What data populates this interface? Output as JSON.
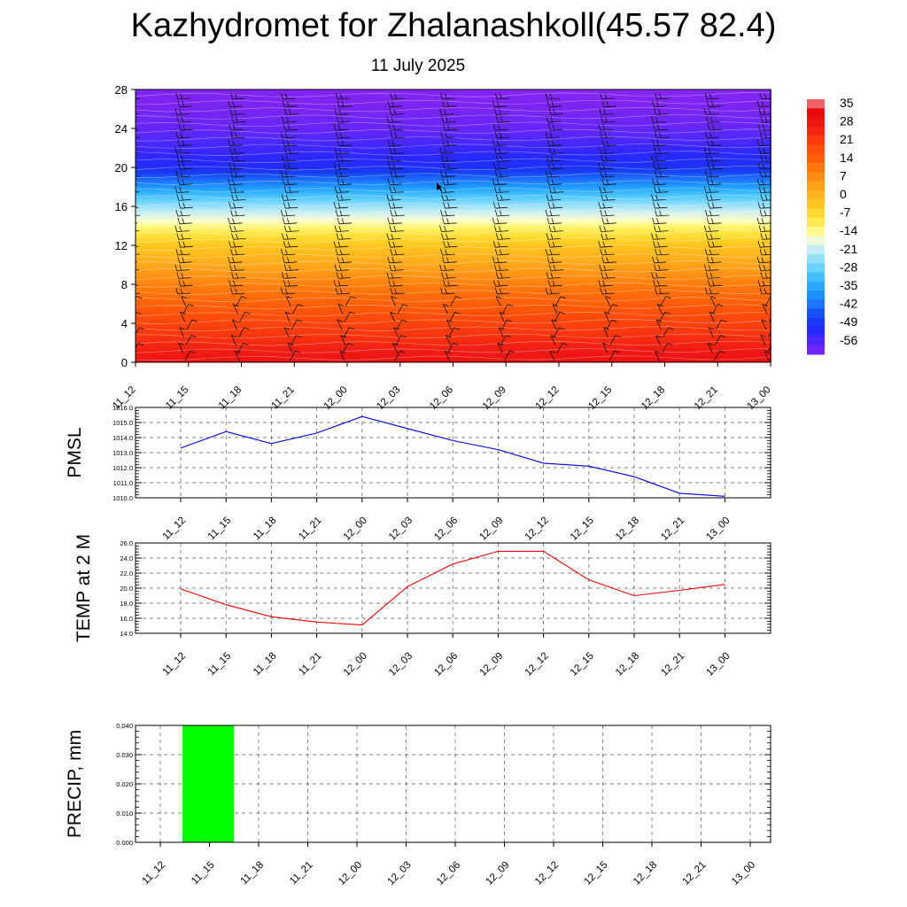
{
  "title": "Kazhydromet for Zhalanashkoll(45.57 82.4)",
  "date": "11 July 2025",
  "colorbar": {
    "labels": [
      "35",
      "28",
      "21",
      "14",
      "7",
      "0",
      "-7",
      "-14",
      "-21",
      "-28",
      "-35",
      "-42",
      "-49",
      "-56"
    ]
  },
  "chart_data": [
    {
      "type": "heatmap",
      "name": "temperature cross-section with wind barbs",
      "x": [
        "11_12",
        "11_15",
        "11_18",
        "11_21",
        "12_00",
        "12_03",
        "12_06",
        "12_09",
        "12_12",
        "12_15",
        "12_18",
        "12_21",
        "13_00"
      ],
      "y_ticks": [
        "0",
        "4",
        "8",
        "12",
        "16",
        "20",
        "24",
        "28"
      ],
      "ylim": [
        0,
        28
      ],
      "color_levels": [
        35,
        28,
        21,
        14,
        7,
        0,
        -7,
        -14,
        -21,
        -28,
        -35,
        -42,
        -49,
        -56
      ],
      "temperature_profile": {
        "heights": [
          0,
          4,
          8,
          12,
          13,
          16,
          20,
          24,
          28
        ],
        "values_start": [
          32,
          22,
          12,
          0,
          -5,
          -20,
          -47,
          -54,
          -57
        ],
        "values_end": [
          33,
          23,
          13,
          1,
          -4,
          -19,
          -45,
          -54,
          -58
        ]
      }
    },
    {
      "type": "line",
      "ylabel": "PMSL",
      "x": [
        "11_12",
        "11_15",
        "11_18",
        "11_21",
        "12_00",
        "12_03",
        "12_06",
        "12_09",
        "12_12",
        "12_15",
        "12_18",
        "12_21",
        "13_00"
      ],
      "y_ticks": [
        "1010.0",
        "1011.0",
        "1012.0",
        "1013.0",
        "1014.0",
        "1015.0",
        "1016.0"
      ],
      "ylim": [
        1010,
        1016
      ],
      "series": [
        {
          "values": [
            1013.3,
            1014.4,
            1013.6,
            1014.3,
            1015.4,
            1014.6,
            1013.8,
            1013.2,
            1012.3,
            1012.1,
            1011.4,
            1010.3,
            1010.1
          ],
          "color": "#0000dd"
        }
      ]
    },
    {
      "type": "line",
      "ylabel": "TEMP at 2 M",
      "x": [
        "11_12",
        "11_15",
        "11_18",
        "11_21",
        "12_00",
        "12_03",
        "12_06",
        "12_09",
        "12_12",
        "12_15",
        "12_18",
        "12_21",
        "13_00"
      ],
      "y_ticks": [
        "14.0",
        "16.0",
        "18.0",
        "20.0",
        "22.0",
        "24.0",
        "26.0"
      ],
      "ylim": [
        14,
        26
      ],
      "series": [
        {
          "values": [
            19.9,
            17.8,
            16.2,
            15.5,
            15.1,
            20.2,
            23.2,
            24.9,
            24.9,
            21.1,
            19.0,
            19.7,
            20.5
          ],
          "color": "#ee0000"
        }
      ]
    },
    {
      "type": "bar",
      "ylabel": "PRECIP, mm",
      "x": [
        "11_12",
        "11_15",
        "11_18",
        "11_21",
        "12_00",
        "12_03",
        "12_06",
        "12_09",
        "12_12",
        "12_15",
        "12_18",
        "12_21",
        "13_00"
      ],
      "y_ticks": [
        "0.000",
        "0.010",
        "0.020",
        "0.030",
        "0.040"
      ],
      "ylim": [
        0,
        0.04
      ],
      "values": [
        0,
        0.04,
        0,
        0,
        0,
        0,
        0,
        0,
        0,
        0,
        0,
        0,
        0
      ],
      "color": "#00ff00"
    }
  ]
}
